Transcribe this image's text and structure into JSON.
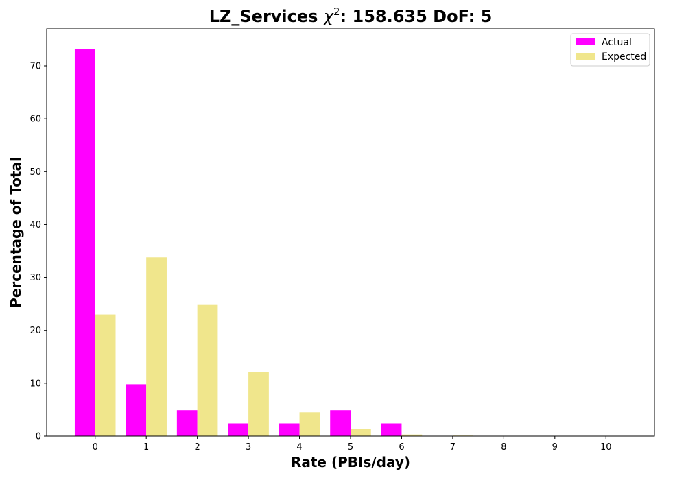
{
  "chart_data": {
    "type": "bar",
    "title": {
      "prefix": "LZ_Services ",
      "chi_symbol": "χ",
      "chi_exponent": "2",
      "suffix": ": 158.635 DoF: 5"
    },
    "xlabel": "Rate (PBIs/day)",
    "ylabel": "Percentage of Total",
    "categories": [
      "0",
      "1",
      "2",
      "3",
      "4",
      "5",
      "6",
      "7",
      "8",
      "9",
      "10"
    ],
    "series": [
      {
        "name": "Actual",
        "color": "#ff00ff",
        "values": [
          73.2,
          9.8,
          4.9,
          2.4,
          2.4,
          4.9,
          2.4,
          0,
          0,
          0,
          0
        ]
      },
      {
        "name": "Expected",
        "color": "#f0e68c",
        "values": [
          23.0,
          33.8,
          24.8,
          12.1,
          4.5,
          1.3,
          0.3,
          0.1,
          0,
          0,
          0
        ]
      }
    ],
    "ylim": [
      0,
      77
    ],
    "xlim": [
      -0.95,
      10.95
    ],
    "yticks": [
      0,
      10,
      20,
      30,
      40,
      50,
      60,
      70
    ],
    "grid": false,
    "legend_position": "top-right"
  }
}
